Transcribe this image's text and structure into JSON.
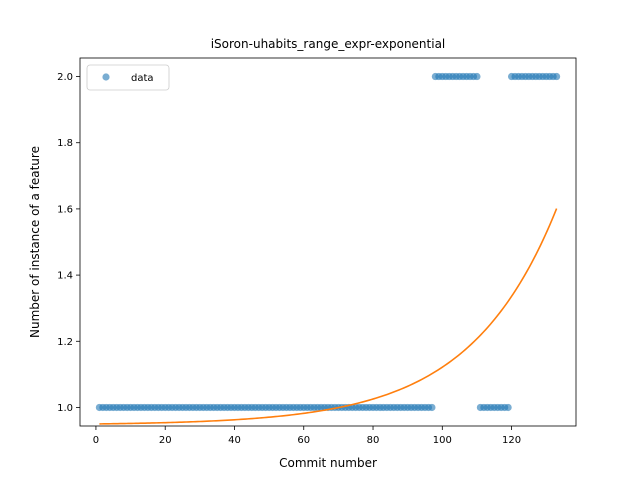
{
  "chart_data": {
    "type": "scatter",
    "title": "iSoron-uhabits_range_expr-exponential",
    "xlabel": "Commit number",
    "ylabel": "Number of instance of a feature",
    "xlim": [
      -4.6,
      138.6
    ],
    "ylim": [
      0.944,
      2.056
    ],
    "xticks": [
      0,
      20,
      40,
      60,
      80,
      100,
      120
    ],
    "yticks": [
      1.0,
      1.2,
      1.4,
      1.6,
      1.8,
      2.0
    ],
    "ytick_labels": [
      "1.0",
      "1.2",
      "1.4",
      "1.6",
      "1.8",
      "2.0"
    ],
    "grid": false,
    "legend": {
      "position": "top-left",
      "entries": [
        "data"
      ]
    },
    "series": [
      {
        "name": "data",
        "kind": "scatter",
        "color": "#1f77b4",
        "alpha": 0.6,
        "segments": [
          {
            "x_from": 1,
            "x_to": 97,
            "y": 1
          },
          {
            "x_from": 98,
            "x_to": 110,
            "y": 2
          },
          {
            "x_from": 111,
            "x_to": 119,
            "y": 1
          },
          {
            "x_from": 120,
            "x_to": 133,
            "y": 2
          }
        ]
      },
      {
        "kind": "line",
        "color": "#ff7f0e",
        "curve": {
          "a": 0.0032,
          "b": 0.04,
          "c": 0.947
        },
        "x_range": [
          1,
          133
        ]
      }
    ]
  }
}
